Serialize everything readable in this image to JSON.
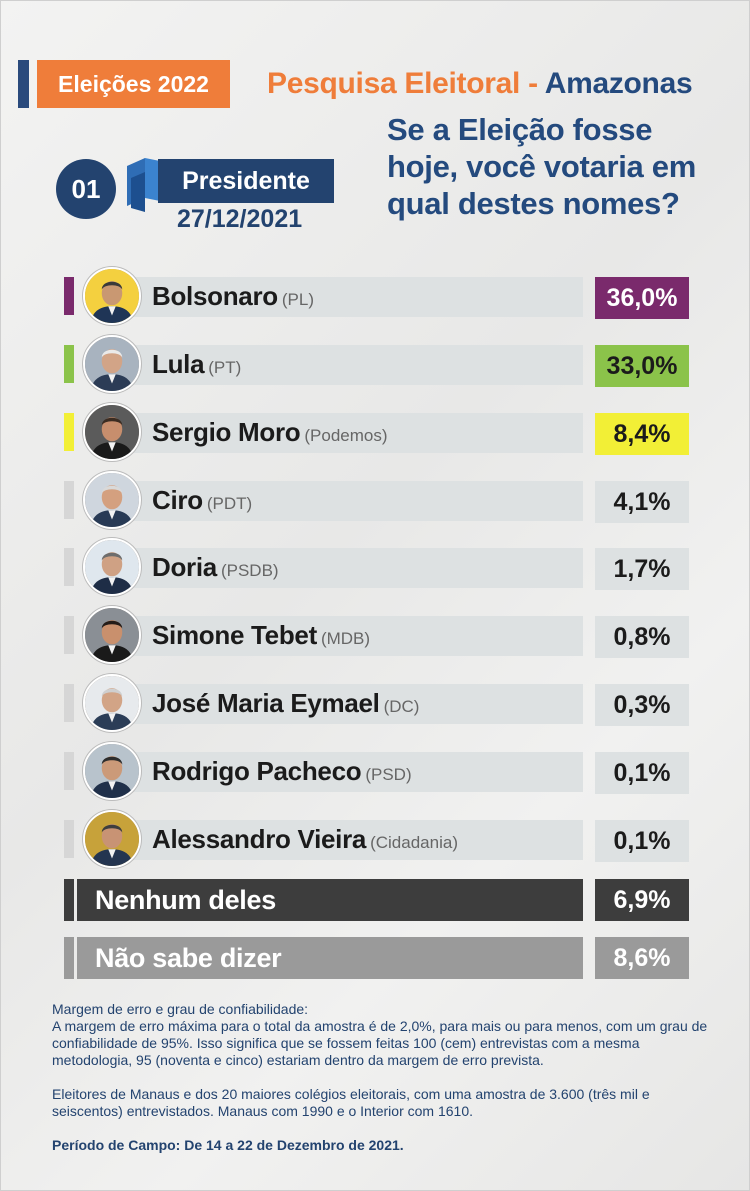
{
  "header": {
    "tag": "Eleições 2022",
    "title_main": "Pesquisa Eleitoral - ",
    "title_state": "Amazonas",
    "question": "Se a Eleição fosse hoje, você votaria em qual destes nomes?",
    "number": "01",
    "office": "Presidente",
    "date": "27/12/2021"
  },
  "colors": {
    "navy": "#23436f",
    "orange": "#ef7d3a",
    "purple": "#7a2a6c",
    "green": "#8bc34a",
    "yellow": "#f2ef36",
    "dark": "#3d3d3d",
    "gray": "#9a9a9a"
  },
  "chart_data": {
    "type": "bar",
    "categories": [
      "Bolsonaro",
      "Lula",
      "Sergio Moro",
      "Ciro",
      "Doria",
      "Simone Tebet",
      "José Maria Eymael",
      "Rodrigo Pacheco",
      "Alessandro Vieira",
      "Nenhum deles",
      "Não sabe dizer"
    ],
    "parties": [
      "(PL)",
      "(PT)",
      "(Podemos)",
      "(PDT)",
      "(PSDB)",
      "(MDB)",
      "(DC)",
      "(PSD)",
      "(Cidadania)",
      "",
      ""
    ],
    "values": [
      36.0,
      33.0,
      8.4,
      4.1,
      1.7,
      0.8,
      0.3,
      0.1,
      0.1,
      6.9,
      8.6
    ],
    "labels": [
      "36,0%",
      "33,0%",
      "8,4%",
      "4,1%",
      "1,7%",
      "0,8%",
      "0,3%",
      "0,1%",
      "0,1%",
      "6,9%",
      "8,6%"
    ],
    "highlight_colors": [
      "#7a2a6c",
      "#8bc34a",
      "#f2ef36",
      "",
      "",
      "",
      "",
      "",
      "",
      "#3d3d3d",
      "#9a9a9a"
    ],
    "unit": "%"
  },
  "notes": {
    "heading": "Margem de erro e grau de confiabilidade:",
    "margin_text": "A margem de erro máxima para o total da amostra é de 2,0%, para mais ou para menos, com um grau de confiabilidade de 95%. Isso significa que se fossem feitas 100 (cem) entrevistas com a mesma metodologia, 95 (noventa e cinco) estariam dentro da margem de erro prevista.",
    "sample_text": "Eleitores de Manaus e dos 20 maiores colégios eleitorais, com uma amostra de 3.600 (três mil e seiscentos) entrevistados. Manaus com 1990 e o Interior com 1610.",
    "period": "Período de Campo: De 14 a 22 de Dezembro de 2021."
  }
}
